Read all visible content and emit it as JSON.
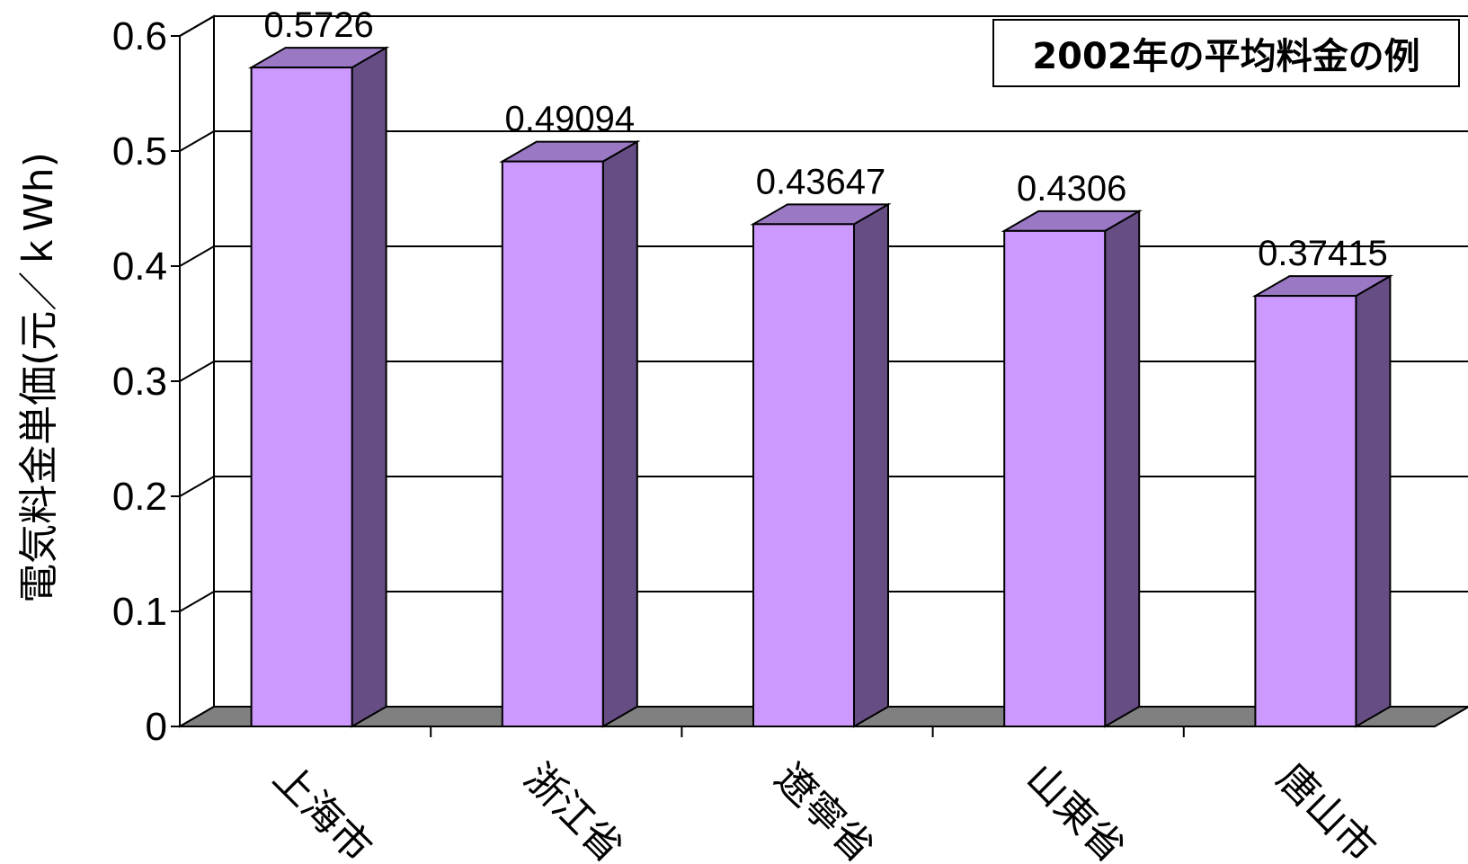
{
  "chart_data": {
    "type": "bar",
    "ylabel": "電気料金単価(元／ｋWh)",
    "annotation": "2002年の平均料金の例",
    "categories": [
      "上海市",
      "浙江省",
      "遼寧省",
      "山東省",
      "唐山市"
    ],
    "values": [
      0.5726,
      0.49094,
      0.43647,
      0.4306,
      0.37415
    ],
    "value_labels": [
      "0.5726",
      "0.49094",
      "0.43647",
      "0.4306",
      "0.37415"
    ],
    "highlight_index": 4,
    "ylim": [
      0,
      0.6
    ],
    "yticks": [
      "0",
      "0.1",
      "0.2",
      "0.3",
      "0.4",
      "0.5",
      "0.6"
    ],
    "grid": true,
    "colors": {
      "bar_front": "#CC99FF",
      "bar_side": "#664E84",
      "bar_top": "#9A78C4",
      "floor": "#808080",
      "highlight_label": "#FF0000"
    }
  }
}
